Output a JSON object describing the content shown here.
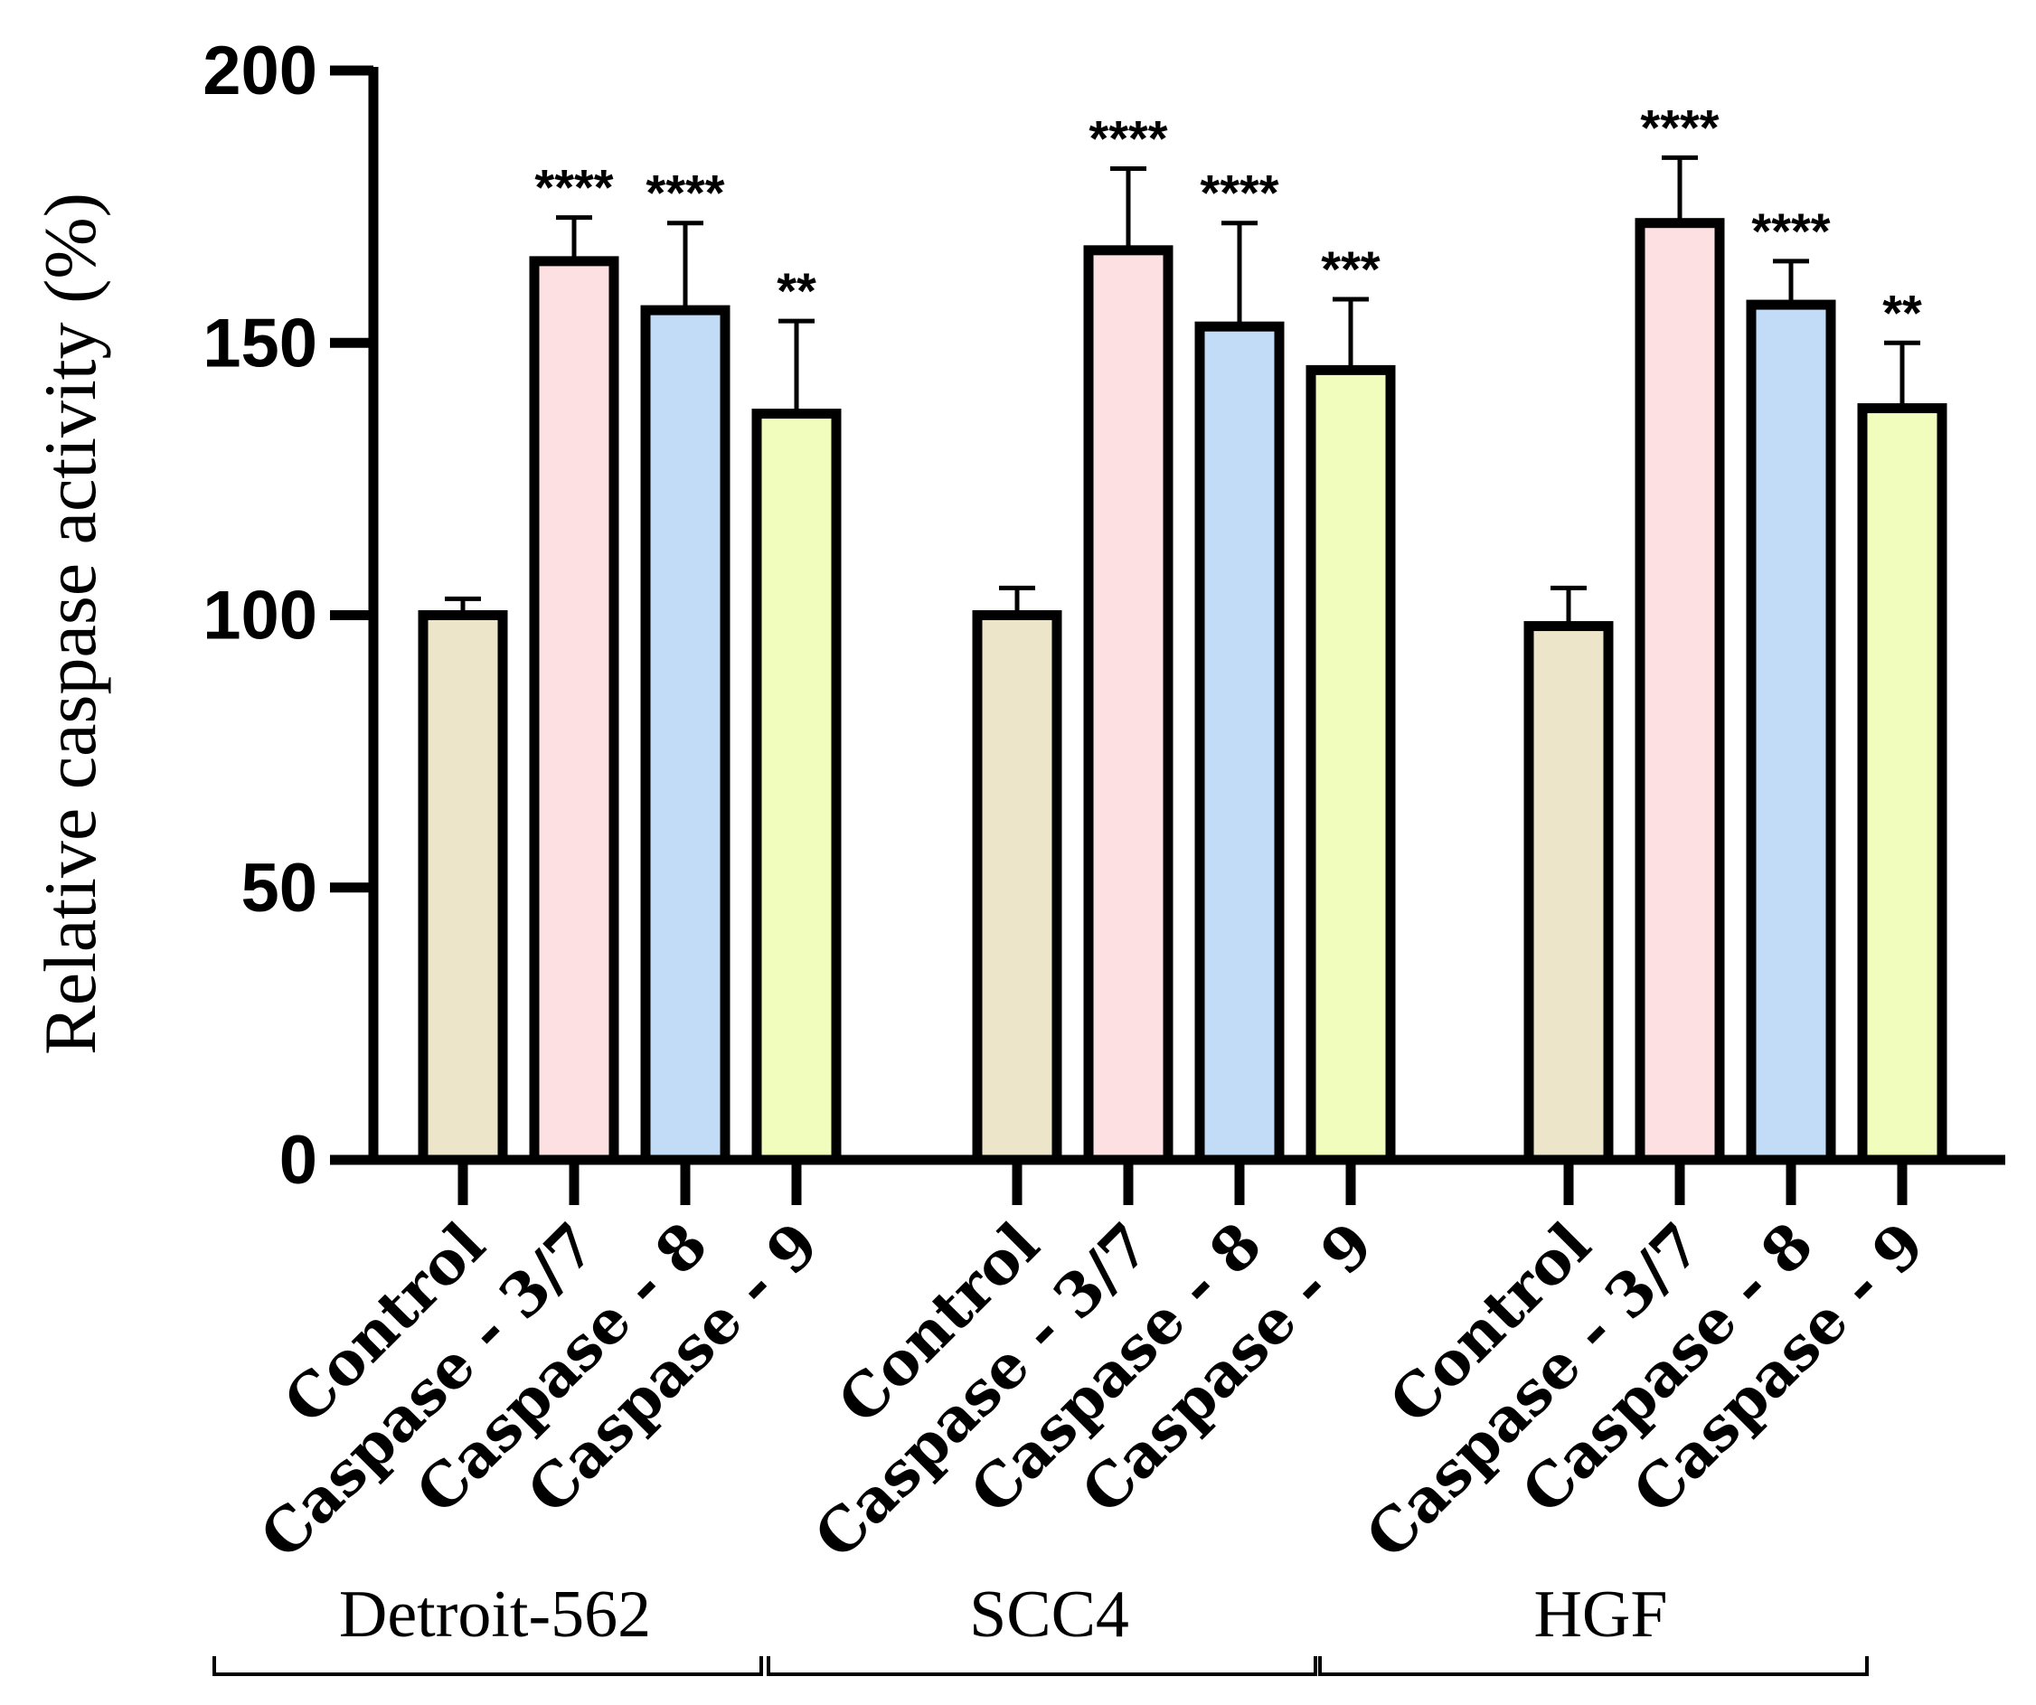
{
  "chart_data": {
    "type": "bar",
    "title": "",
    "xlabel": "",
    "ylabel": "Relative caspase activity (%)",
    "ylim": [
      0,
      200
    ],
    "yticks": [
      0,
      50,
      100,
      150,
      200
    ],
    "grid": false,
    "legend": "none",
    "categories": [
      "Control",
      "Caspase - 3/7",
      "Caspase - 8",
      "Caspase - 9"
    ],
    "colors": {
      "Control": "#ede5c9",
      "Caspase - 3/7": "#fde0e2",
      "Caspase - 8": "#c2dcf7",
      "Caspase - 9": "#f0fdbd"
    },
    "groups": [
      {
        "name": "Detroit-562",
        "bars": [
          {
            "category": "Control",
            "value": 100,
            "error": 3,
            "significance": ""
          },
          {
            "category": "Caspase - 3/7",
            "value": 165,
            "error": 8,
            "significance": "****"
          },
          {
            "category": "Caspase - 8",
            "value": 156,
            "error": 16,
            "significance": "****"
          },
          {
            "category": "Caspase - 9",
            "value": 137,
            "error": 17,
            "significance": "**"
          }
        ]
      },
      {
        "name": "SCC4",
        "bars": [
          {
            "category": "Control",
            "value": 100,
            "error": 5,
            "significance": ""
          },
          {
            "category": "Caspase - 3/7",
            "value": 167,
            "error": 15,
            "significance": "****"
          },
          {
            "category": "Caspase - 8",
            "value": 153,
            "error": 19,
            "significance": "****"
          },
          {
            "category": "Caspase - 9",
            "value": 145,
            "error": 13,
            "significance": "***"
          }
        ]
      },
      {
        "name": "HGF",
        "bars": [
          {
            "category": "Control",
            "value": 98,
            "error": 7,
            "significance": ""
          },
          {
            "category": "Caspase - 3/7",
            "value": 172,
            "error": 12,
            "significance": "****"
          },
          {
            "category": "Caspase - 8",
            "value": 157,
            "error": 8,
            "significance": "****"
          },
          {
            "category": "Caspase - 9",
            "value": 138,
            "error": 12,
            "significance": "**"
          }
        ]
      }
    ]
  }
}
